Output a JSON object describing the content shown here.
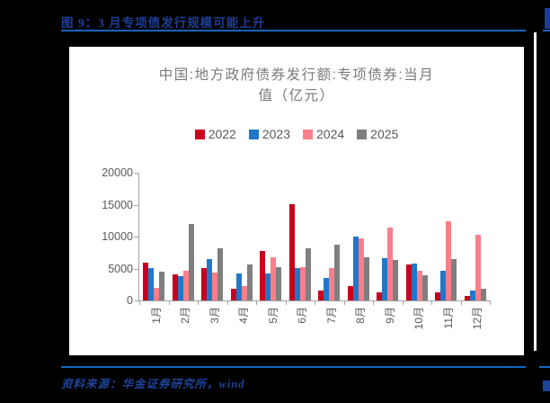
{
  "page": {
    "figure_caption": "图 9：3 月专项债发行规模可能上升",
    "source_note": "资料来源：华金证券研究所，wind",
    "colors": {
      "background": "#000000",
      "panel": "#ffffff",
      "caption_blue": "#1d3e97",
      "rule_blue": "#1565c0",
      "axis_gray": "#a3a3a3",
      "label_gray": "#595959",
      "title_gray": "#7a7a7a"
    }
  },
  "chart_data": {
    "type": "bar",
    "title": "中国:地方政府债券发行额:专项债券:当月值（亿元）",
    "title_lines": [
      "中国:地方政府债券发行额:专项债券:当月",
      "值（亿元）"
    ],
    "xlabel": "",
    "ylabel": "",
    "ylim": [
      0,
      20000
    ],
    "yticks": [
      0,
      5000,
      10000,
      15000,
      20000
    ],
    "grid": false,
    "legend_position": "top",
    "categories": [
      "1月",
      "2月",
      "3月",
      "4月",
      "5月",
      "6月",
      "7月",
      "8月",
      "9月",
      "10月",
      "11月",
      "12月"
    ],
    "series": [
      {
        "name": "2022",
        "color": "#c9001e",
        "values": [
          5900,
          4100,
          5000,
          1900,
          7800,
          15000,
          1600,
          2200,
          1200,
          5600,
          1300,
          700
        ]
      },
      {
        "name": "2023",
        "color": "#2278c8",
        "values": [
          5100,
          3800,
          6500,
          4200,
          4200,
          5000,
          3500,
          10000,
          6600,
          5800,
          4700,
          1500
        ]
      },
      {
        "name": "2024",
        "color": "#fb7e8b",
        "values": [
          2000,
          4600,
          4400,
          2200,
          6800,
          5200,
          5000,
          9700,
          11400,
          4700,
          12400,
          10300
        ]
      },
      {
        "name": "2025",
        "color": "#7f7f7f",
        "values": [
          4500,
          12000,
          8100,
          5700,
          5200,
          8200,
          8800,
          6700,
          6400,
          3900,
          6500,
          1800
        ]
      }
    ]
  }
}
